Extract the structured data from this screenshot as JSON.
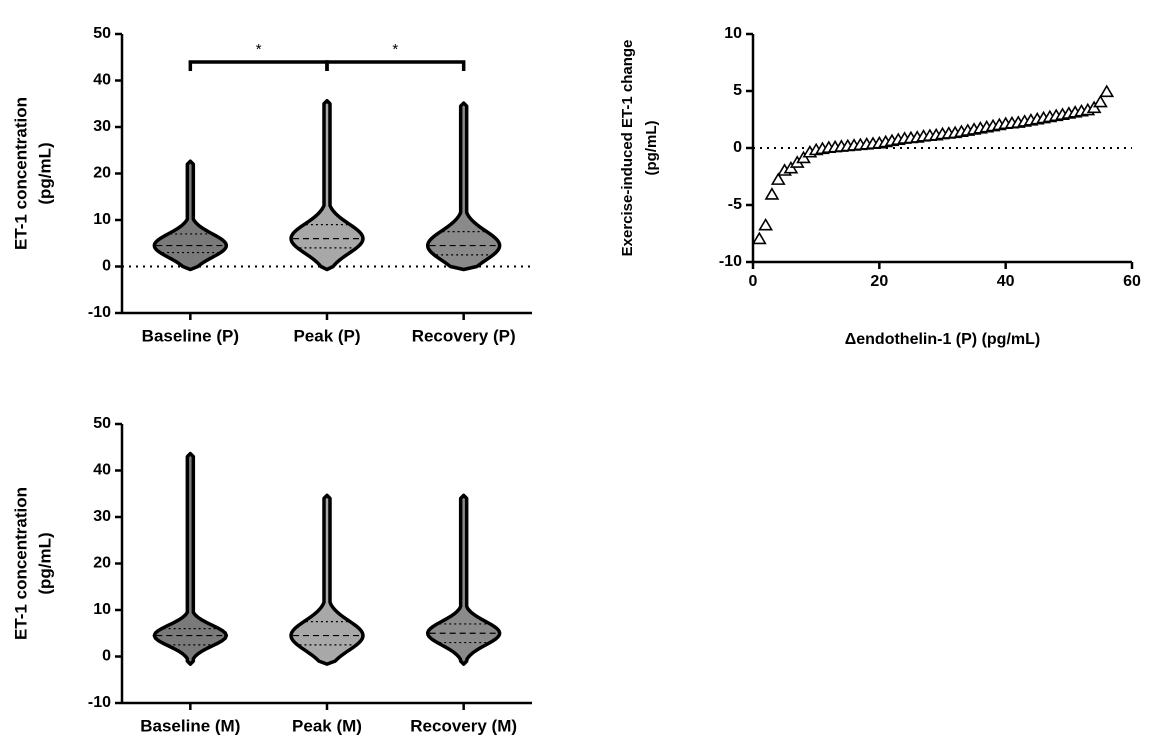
{
  "chart_data": [
    {
      "type": "violin",
      "ylabel": [
        "ET-1 concentration",
        "(pg/mL)"
      ],
      "categories": [
        "Baseline (P)",
        "Peak (P)",
        "Recovery (P)"
      ],
      "violins": [
        {
          "min": 0,
          "q1": 3,
          "median": 4.5,
          "q3": 7,
          "max": 22,
          "color": "#7a7a7a"
        },
        {
          "min": 0,
          "q1": 4,
          "median": 6,
          "q3": 9,
          "max": 35,
          "color": "#a8a8a8"
        },
        {
          "min": 0,
          "q1": 2.5,
          "median": 4.5,
          "q3": 7.5,
          "max": 34.5,
          "color": "#8a8a8a"
        }
      ],
      "annotations": [
        "*",
        "*"
      ],
      "reference_line": 0,
      "ylim": [
        -10,
        50
      ],
      "yticks": [
        -10,
        0,
        10,
        20,
        30,
        40,
        50
      ]
    },
    {
      "type": "scatter",
      "ylabel": [
        "Exercise-induced ET-1 change",
        "(pg/mL)"
      ],
      "xlabel": "Δendothelin-1 (P) (pg/mL)",
      "x": [
        1,
        2,
        3,
        4,
        5,
        6,
        7,
        8,
        9,
        10,
        11,
        12,
        13,
        14,
        15,
        16,
        17,
        18,
        19,
        20,
        21,
        22,
        23,
        24,
        25,
        26,
        27,
        28,
        29,
        30,
        31,
        32,
        33,
        34,
        35,
        36,
        37,
        38,
        39,
        40,
        41,
        42,
        43,
        44,
        45,
        46,
        47,
        48,
        49,
        50,
        51,
        52,
        53,
        54,
        55,
        56
      ],
      "values": [
        -8,
        -6.8,
        -4.1,
        -2.8,
        -2,
        -1.8,
        -1.3,
        -0.9,
        -0.4,
        -0.2,
        -0.1,
        0,
        0.05,
        0.1,
        0.15,
        0.2,
        0.25,
        0.3,
        0.35,
        0.4,
        0.5,
        0.6,
        0.7,
        0.8,
        0.85,
        0.9,
        1,
        1.05,
        1.1,
        1.2,
        1.25,
        1.3,
        1.4,
        1.5,
        1.6,
        1.7,
        1.8,
        1.9,
        2,
        2.1,
        2.15,
        2.2,
        2.3,
        2.4,
        2.5,
        2.6,
        2.7,
        2.8,
        2.9,
        3,
        3.1,
        3.2,
        3.3,
        3.5,
        4,
        4.9
      ],
      "color": "#000000",
      "reference_line": 0,
      "xlim": [
        0,
        60
      ],
      "xticks": [
        0,
        20,
        40,
        60
      ],
      "ylim": [
        -10,
        10
      ],
      "yticks": [
        -10,
        -5,
        0,
        5,
        10
      ]
    },
    {
      "type": "violin",
      "ylabel": [
        "ET-1 concentration",
        "(pg/mL)"
      ],
      "categories": [
        "Baseline (M)",
        "Peak (M)",
        "Recovery (M)"
      ],
      "violins": [
        {
          "min": -1,
          "q1": 2.5,
          "median": 4.5,
          "q3": 6,
          "max": 43,
          "color": "#7a7a7a"
        },
        {
          "min": -1,
          "q1": 2.5,
          "median": 4.5,
          "q3": 7.5,
          "max": 34,
          "color": "#a8a8a8"
        },
        {
          "min": -1,
          "q1": 3,
          "median": 5,
          "q3": 7,
          "max": 34,
          "color": "#8a8a8a"
        }
      ],
      "ylim": [
        -10,
        50
      ],
      "yticks": [
        -10,
        0,
        10,
        20,
        30,
        40,
        50
      ]
    }
  ]
}
